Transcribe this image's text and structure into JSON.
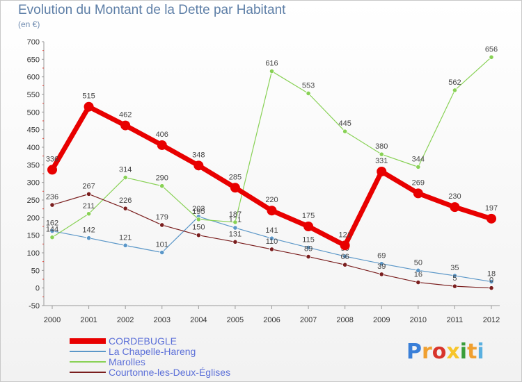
{
  "title": "Evolution du Montant de la Dette par Habitant",
  "unit": "(en €)",
  "logo": "Proxiti",
  "chart_data": {
    "type": "line",
    "title": "Evolution du Montant de la Dette par Habitant",
    "ylabel": "(en €)",
    "xlabel": "",
    "x": [
      "2000",
      "2001",
      "2002",
      "2003",
      "2004",
      "2005",
      "2006",
      "2007",
      "2008",
      "2009",
      "2010",
      "2011",
      "2012"
    ],
    "ylim": [
      -50,
      700
    ],
    "yticks": [
      -50,
      0,
      50,
      100,
      150,
      200,
      250,
      300,
      350,
      400,
      450,
      500,
      550,
      600,
      650,
      700
    ],
    "grid": false,
    "legend_position": "bottom-left",
    "series": [
      {
        "name": "CORDEBUGLE",
        "color": "#e80000",
        "values": [
          336,
          515,
          462,
          406,
          348,
          285,
          220,
          175,
          121,
          331,
          269,
          230,
          197
        ]
      },
      {
        "name": "La Chapelle-Hareng",
        "color": "#5b97c8",
        "values": [
          162,
          142,
          121,
          101,
          203,
          171,
          141,
          115,
          90,
          69,
          50,
          35,
          18
        ]
      },
      {
        "name": "Marolles",
        "color": "#88d155",
        "values": [
          144,
          211,
          314,
          290,
          195,
          187,
          616,
          553,
          445,
          380,
          344,
          562,
          656
        ]
      },
      {
        "name": "Courtonne-les-Deux-Églises",
        "color": "#7a1e1e",
        "values": [
          236,
          267,
          226,
          179,
          150,
          131,
          110,
          89,
          66,
          39,
          16,
          5,
          0
        ]
      }
    ]
  }
}
